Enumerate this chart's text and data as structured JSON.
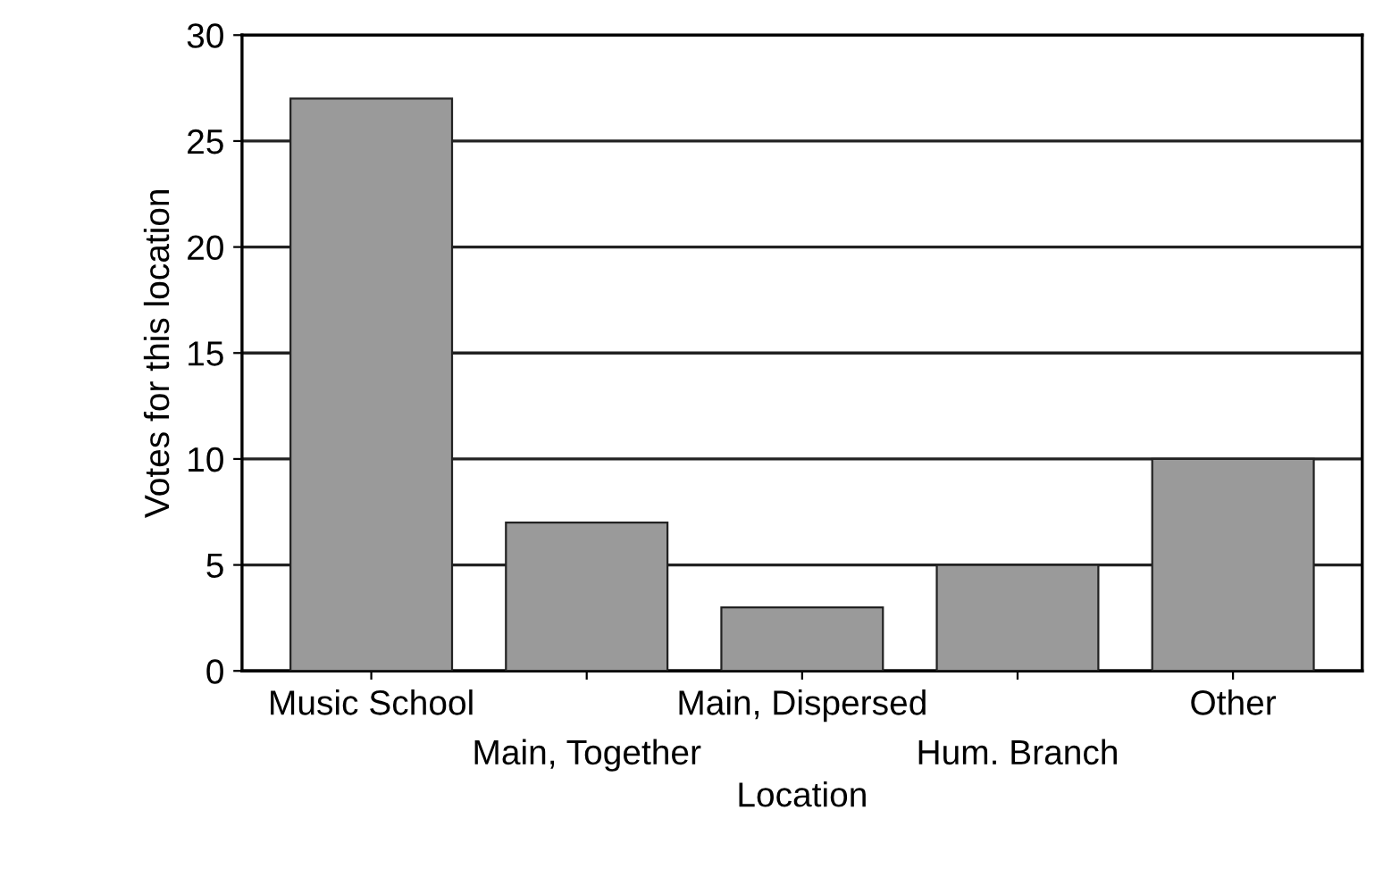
{
  "chart_data": {
    "type": "bar",
    "xlabel": "Location",
    "ylabel": "Votes for this location",
    "categories": [
      "Music School",
      "Main, Together",
      "Main, Dispersed",
      "Hum. Branch",
      "Other"
    ],
    "values": [
      27,
      7,
      3,
      5,
      10
    ],
    "color": "#9a9a9a",
    "ylim": [
      0,
      30
    ],
    "yticks": [
      0,
      5,
      10,
      15,
      20,
      25,
      30
    ],
    "grid": "y"
  }
}
